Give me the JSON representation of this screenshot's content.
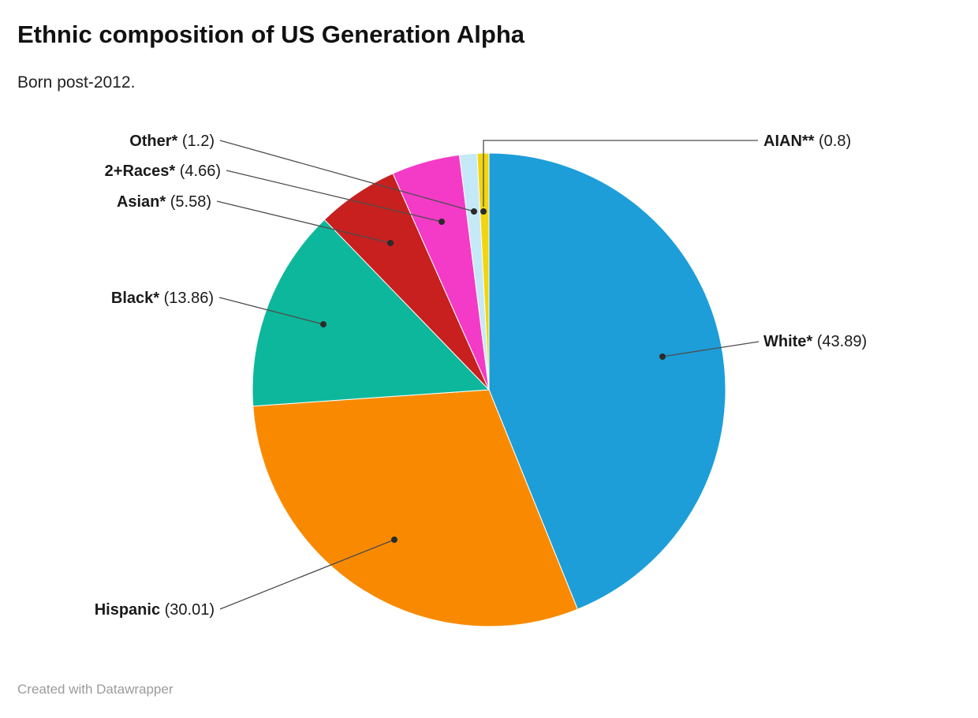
{
  "header": {
    "title": "Ethnic composition of US Generation Alpha",
    "subtitle": "Born post-2012."
  },
  "footer": {
    "credit": "Created with Datawrapper"
  },
  "chart_data": {
    "type": "pie",
    "title": "Ethnic composition of US Generation Alpha",
    "subtitle": "Born post-2012.",
    "unit": "percent",
    "start_angle_deg": 0,
    "direction": "clockwise",
    "legend_position": "outside-labels-with-leader-lines",
    "series": [
      {
        "label": "White*",
        "value": 43.89,
        "color": "#1d9ed9"
      },
      {
        "label": "Hispanic",
        "value": 30.01,
        "color": "#f98a00"
      },
      {
        "label": "Black*",
        "value": 13.86,
        "color": "#0db79b"
      },
      {
        "label": "Asian*",
        "value": 5.58,
        "color": "#c7201f"
      },
      {
        "label": "2+Races*",
        "value": 4.66,
        "color": "#f33bc7"
      },
      {
        "label": "Other*",
        "value": 1.2,
        "color": "#c5e9f7"
      },
      {
        "label": "AIAN**",
        "value": 0.8,
        "color": "#f2d50f"
      }
    ]
  }
}
